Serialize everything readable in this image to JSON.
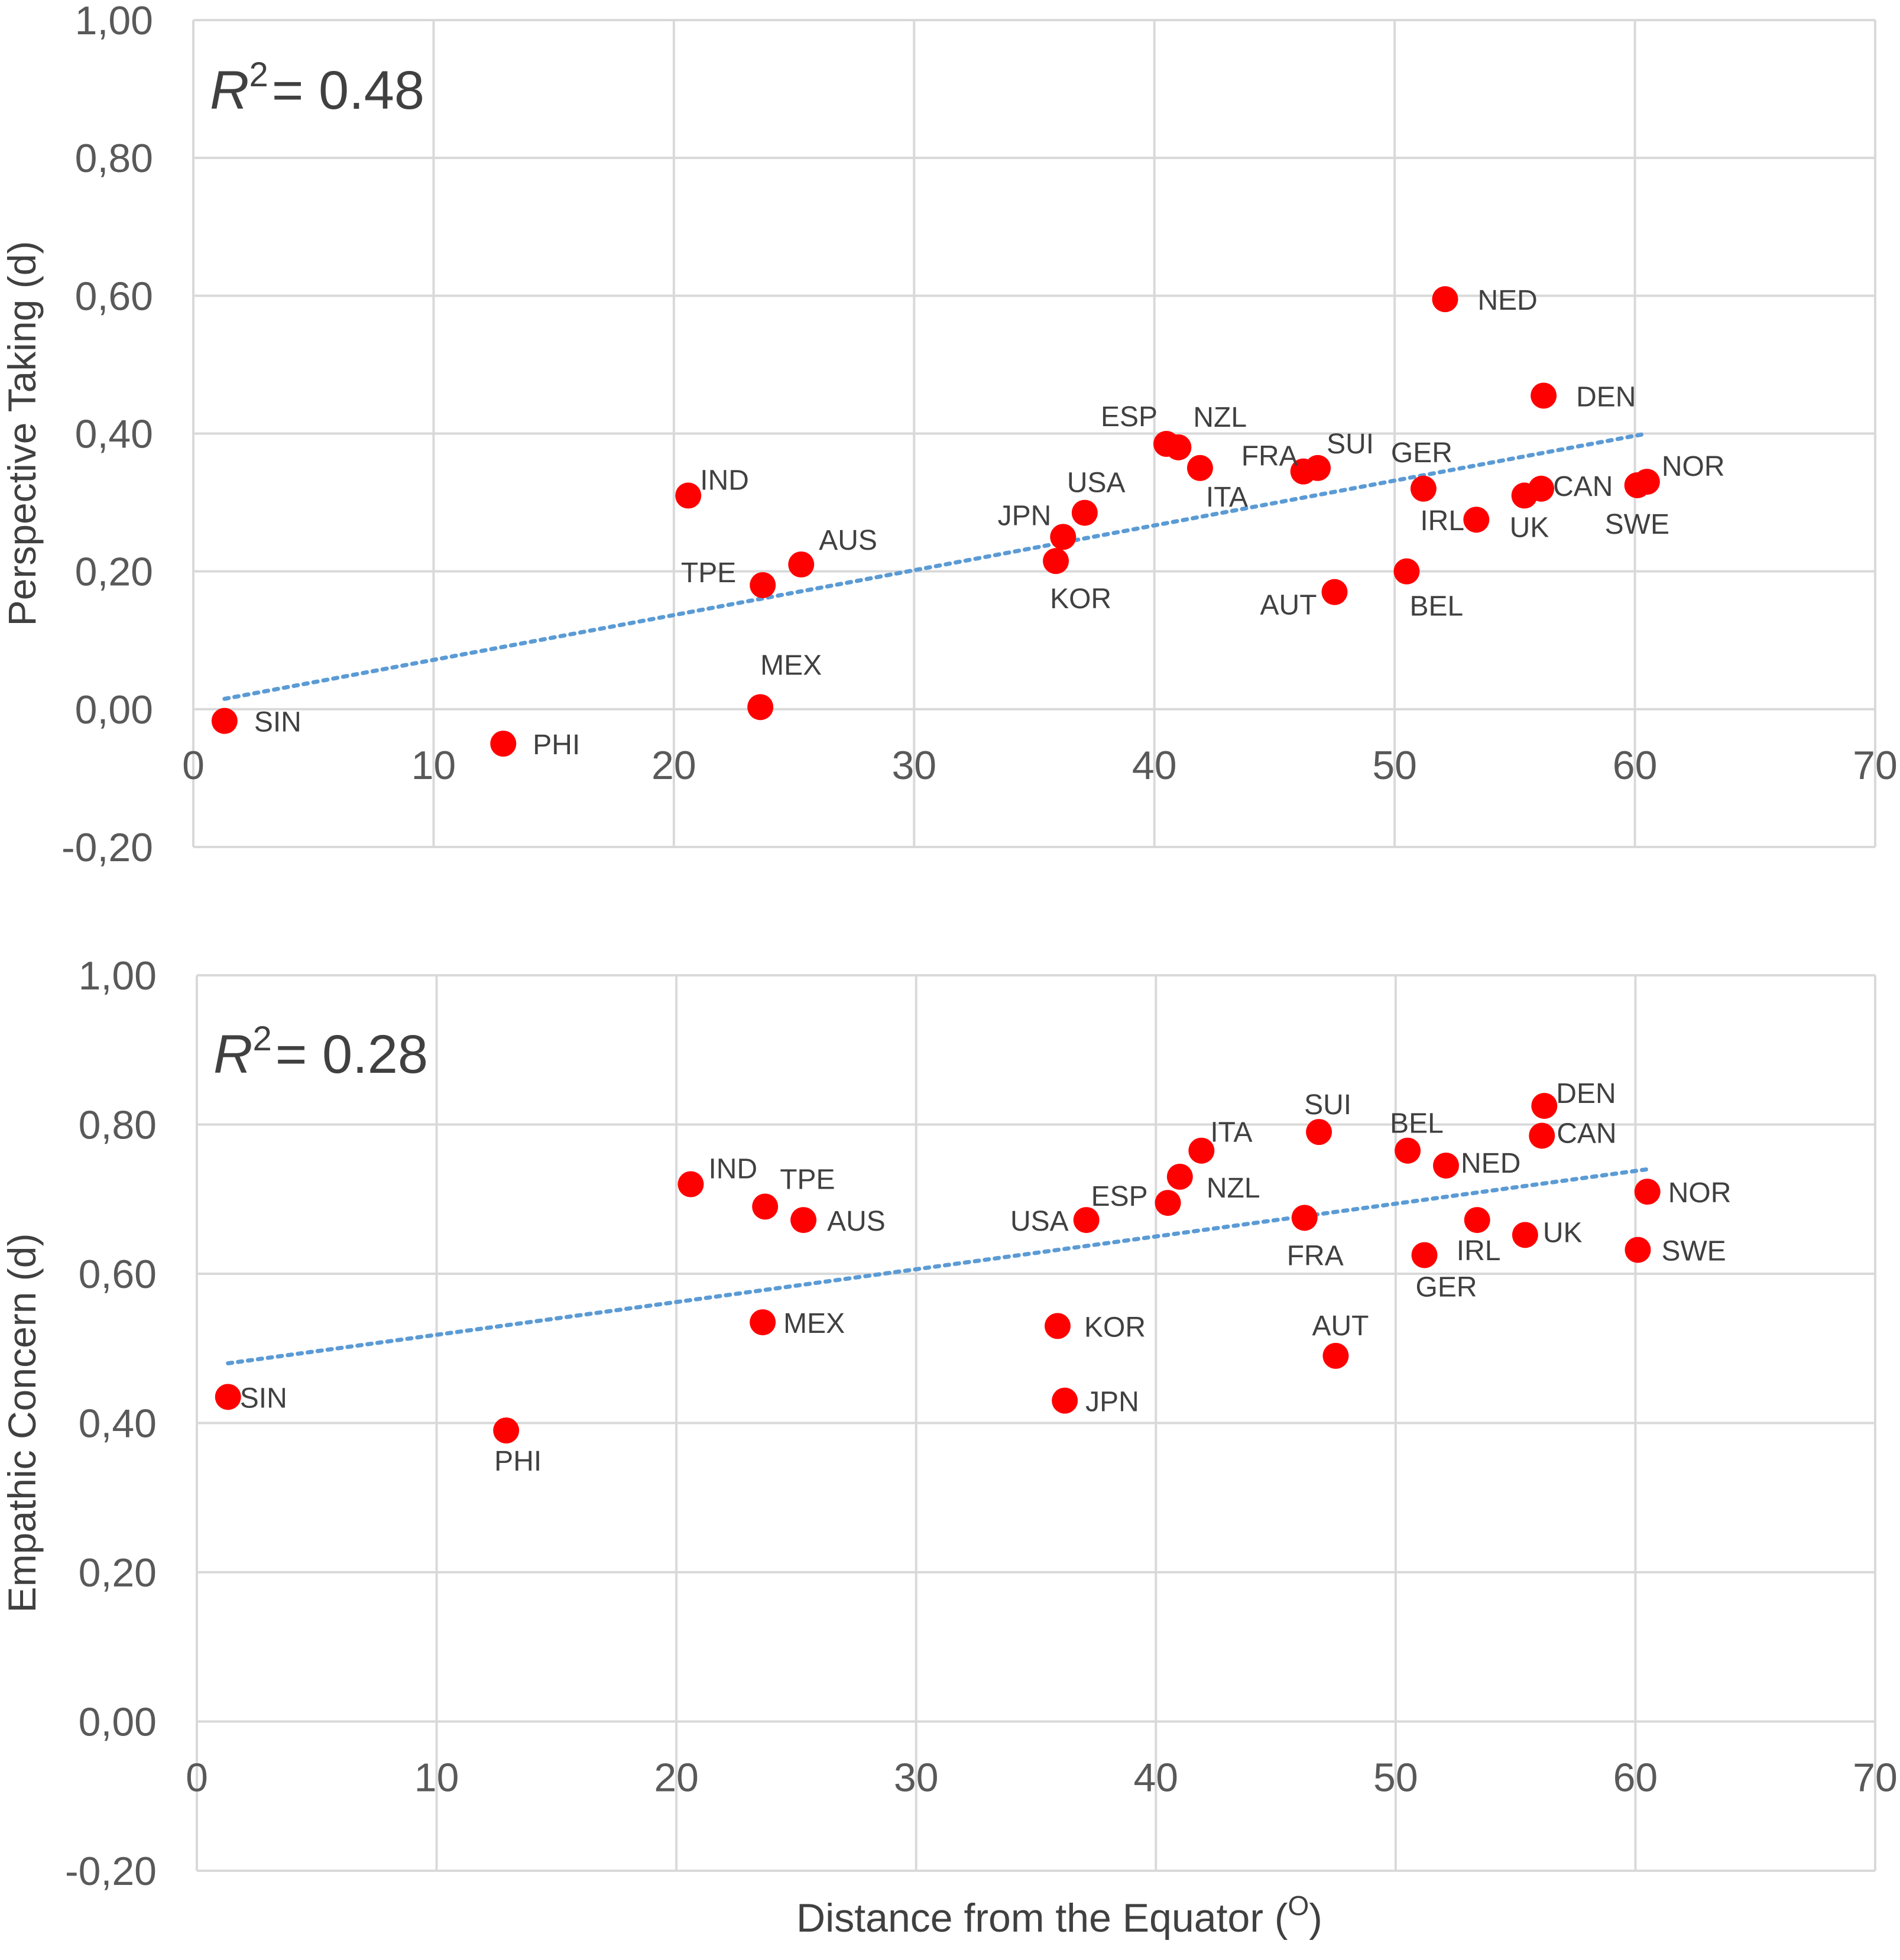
{
  "chart_data": [
    {
      "type": "scatter",
      "ylabel": "Perspective Taking (d)",
      "xlabel": "",
      "r2_label": "R",
      "r2_sup": "2",
      "r2_value": "= 0.48",
      "xlim": [
        0,
        70
      ],
      "ylim": [
        -0.2,
        1.0
      ],
      "x_ticks": [
        "0",
        "10",
        "20",
        "30",
        "40",
        "50",
        "60",
        "70"
      ],
      "y_ticks": [
        "-0,20",
        "0,00",
        "0,20",
        "0,40",
        "0,60",
        "0,80",
        "1,00"
      ],
      "trendline": {
        "x0": 1.3,
        "y0": 0.015,
        "x1": 60.5,
        "y1": 0.4
      },
      "points": [
        {
          "label": "SIN",
          "x": 1.3,
          "y": -0.017
        },
        {
          "label": "PHI",
          "x": 12.9,
          "y": -0.05
        },
        {
          "label": "IND",
          "x": 20.6,
          "y": 0.31
        },
        {
          "label": "TPE",
          "x": 23.7,
          "y": 0.18
        },
        {
          "label": "MEX",
          "x": 23.6,
          "y": 0.003
        },
        {
          "label": "AUS",
          "x": 25.3,
          "y": 0.21
        },
        {
          "label": "JPN",
          "x": 36.2,
          "y": 0.25
        },
        {
          "label": "KOR",
          "x": 35.9,
          "y": 0.215
        },
        {
          "label": "USA",
          "x": 37.1,
          "y": 0.285
        },
        {
          "label": "ESP",
          "x": 40.5,
          "y": 0.385
        },
        {
          "label": "NZL",
          "x": 41.0,
          "y": 0.38
        },
        {
          "label": "ITA",
          "x": 41.9,
          "y": 0.35
        },
        {
          "label": "FRA",
          "x": 46.2,
          "y": 0.345
        },
        {
          "label": "SUI",
          "x": 46.8,
          "y": 0.35
        },
        {
          "label": "AUT",
          "x": 47.5,
          "y": 0.17
        },
        {
          "label": "BEL",
          "x": 50.5,
          "y": 0.2
        },
        {
          "label": "GER",
          "x": 51.2,
          "y": 0.32
        },
        {
          "label": "NED",
          "x": 52.1,
          "y": 0.595
        },
        {
          "label": "IRL",
          "x": 53.4,
          "y": 0.275
        },
        {
          "label": "UK",
          "x": 55.4,
          "y": 0.31
        },
        {
          "label": "CAN",
          "x": 56.1,
          "y": 0.32
        },
        {
          "label": "DEN",
          "x": 56.2,
          "y": 0.455
        },
        {
          "label": "SWE",
          "x": 60.1,
          "y": 0.325
        },
        {
          "label": "NOR",
          "x": 60.5,
          "y": 0.33
        }
      ]
    },
    {
      "type": "scatter",
      "ylabel": "Empathic Concern (d)",
      "xlabel": "Distance from the Equator (",
      "xlabel_sup": "O",
      "xlabel_end": ")",
      "r2_label": "R",
      "r2_sup": "2",
      "r2_value": "= 0.28",
      "xlim": [
        0,
        70
      ],
      "ylim": [
        -0.2,
        1.0
      ],
      "x_ticks": [
        "0",
        "10",
        "20",
        "30",
        "40",
        "50",
        "60",
        "70"
      ],
      "y_ticks": [
        "-0,20",
        "0,00",
        "0,20",
        "0,40",
        "0,60",
        "0,80",
        "1,00"
      ],
      "trendline": {
        "x0": 1.3,
        "y0": 0.48,
        "x1": 60.5,
        "y1": 0.74
      },
      "points": [
        {
          "label": "SIN",
          "x": 1.3,
          "y": 0.435
        },
        {
          "label": "PHI",
          "x": 12.9,
          "y": 0.39
        },
        {
          "label": "IND",
          "x": 20.6,
          "y": 0.72
        },
        {
          "label": "TPE",
          "x": 23.7,
          "y": 0.69
        },
        {
          "label": "MEX",
          "x": 23.6,
          "y": 0.535
        },
        {
          "label": "AUS",
          "x": 25.3,
          "y": 0.672
        },
        {
          "label": "USA",
          "x": 37.1,
          "y": 0.672
        },
        {
          "label": "KOR",
          "x": 35.9,
          "y": 0.53
        },
        {
          "label": "JPN",
          "x": 36.2,
          "y": 0.43
        },
        {
          "label": "ESP",
          "x": 40.5,
          "y": 0.695
        },
        {
          "label": "NZL",
          "x": 41.0,
          "y": 0.73
        },
        {
          "label": "ITA",
          "x": 41.9,
          "y": 0.765
        },
        {
          "label": "SUI",
          "x": 46.8,
          "y": 0.79
        },
        {
          "label": "FRA",
          "x": 46.2,
          "y": 0.675
        },
        {
          "label": "AUT",
          "x": 47.5,
          "y": 0.49
        },
        {
          "label": "BEL",
          "x": 50.5,
          "y": 0.765
        },
        {
          "label": "GER",
          "x": 51.2,
          "y": 0.625
        },
        {
          "label": "NED",
          "x": 52.1,
          "y": 0.745
        },
        {
          "label": "IRL",
          "x": 53.4,
          "y": 0.672
        },
        {
          "label": "UK",
          "x": 55.4,
          "y": 0.652
        },
        {
          "label": "DEN",
          "x": 56.2,
          "y": 0.825
        },
        {
          "label": "CAN",
          "x": 56.1,
          "y": 0.785
        },
        {
          "label": "NOR",
          "x": 60.5,
          "y": 0.71
        },
        {
          "label": "SWE",
          "x": 60.1,
          "y": 0.632
        }
      ]
    }
  ],
  "colors": {
    "point": "#ff0000",
    "trend": "#5b9bd5",
    "grid": "#d9d9d9",
    "text": "#404040"
  }
}
